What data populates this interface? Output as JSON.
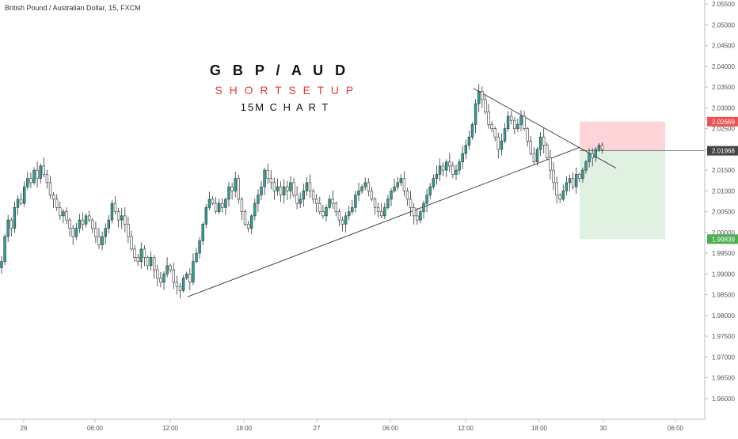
{
  "symbol_label": "British Pound / Australian Dollar, 15, FXCM",
  "annotations": {
    "title": "G B P / A U D",
    "subtitle": "S H O R T  S E T U P",
    "timeframe": "15M C H A R T"
  },
  "colors": {
    "up": "#26a69a",
    "down": "#ffffff",
    "wick": "#333333",
    "stop_zone": "#ffcdd2",
    "target_zone": "#dcefdc",
    "stop_label": "#ef5350",
    "target_label": "#4caf50",
    "price_label": "#444444",
    "trendline": "#333333"
  },
  "chart_data": {
    "type": "candlestick",
    "y_axis": {
      "min": 1.955,
      "max": 2.056,
      "ticks": [
        "2.05500",
        "2.05000",
        "2.04500",
        "2.04000",
        "2.03500",
        "2.03000",
        "2.02500",
        "2.02000",
        "2.01500",
        "2.01000",
        "2.00500",
        "2.00000",
        "1.99500",
        "1.99000",
        "1.98500",
        "1.98000",
        "1.97500",
        "1.97000",
        "1.96500",
        "1.96000"
      ]
    },
    "x_axis": {
      "ticks": [
        "26",
        "06:00",
        "12:00",
        "18:00",
        "27",
        "06:00",
        "12:00",
        "18:00",
        "30",
        "06:00"
      ]
    },
    "price_labels": {
      "stop": "2.02669",
      "current": "2.01968",
      "target": "1.99839"
    },
    "position": {
      "entry": 2.01968,
      "stop": 2.02669,
      "target": 1.99839
    },
    "trendlines": [
      {
        "name": "ascending-support",
        "from": [
          0,
          1.9845
        ],
        "to": [
          181,
          2.0205
        ]
      },
      {
        "name": "descending-resistance",
        "from": [
          150,
          2.0347
        ],
        "to": [
          194,
          2.0155
        ]
      }
    ],
    "closes": [
      1.993,
      1.999,
      2.003,
      2.001,
      2.006,
      2.008,
      2.007,
      2.011,
      2.013,
      2.012,
      2.015,
      2.013,
      2.016,
      2.014,
      2.012,
      2.009,
      2.008,
      2.006,
      2.004,
      2.005,
      2.003,
      2.001,
      1.999,
      2.001,
      2.003,
      2.002,
      2.004,
      2.003,
      2.001,
      1.999,
      1.997,
      1.999,
      2.001,
      2.003,
      2.007,
      2.005,
      2.003,
      2.004,
      2.002,
      1.999,
      1.996,
      1.994,
      1.993,
      1.996,
      1.994,
      1.992,
      1.994,
      1.991,
      1.989,
      1.988,
      1.99,
      1.992,
      1.991,
      1.988,
      1.987,
      1.986,
      1.989,
      1.99,
      1.988,
      1.993,
      1.995,
      1.998,
      2.002,
      2.006,
      2.008,
      2.007,
      2.005,
      2.007,
      2.006,
      2.008,
      2.011,
      2.01,
      2.013,
      2.008,
      2.005,
      2.002,
      2.001,
      2.004,
      2.007,
      2.009,
      2.011,
      2.015,
      2.013,
      2.012,
      2.01,
      2.011,
      2.009,
      2.011,
      2.01,
      2.012,
      2.009,
      2.007,
      2.008,
      2.01,
      2.012,
      2.01,
      2.008,
      2.007,
      2.005,
      2.004,
      2.006,
      2.008,
      2.007,
      2.005,
      2.003,
      2.002,
      2.004,
      2.005,
      2.006,
      2.009,
      2.01,
      2.011,
      2.012,
      2.01,
      2.008,
      2.006,
      2.005,
      2.004,
      2.006,
      2.008,
      2.01,
      2.011,
      2.012,
      2.013,
      2.01,
      2.008,
      2.006,
      2.004,
      2.003,
      2.005,
      2.007,
      2.009,
      2.011,
      2.013,
      2.014,
      2.016,
      2.015,
      2.017,
      2.016,
      2.014,
      2.015,
      2.017,
      2.019,
      2.021,
      2.023,
      2.026,
      2.031,
      2.034,
      2.032,
      2.029,
      2.026,
      2.025,
      2.023,
      2.02,
      2.022,
      2.025,
      2.028,
      2.027,
      2.025,
      2.026,
      2.028,
      2.025,
      2.022,
      2.019,
      2.017,
      2.02,
      2.023,
      2.021,
      2.018,
      2.015,
      2.012,
      2.009,
      2.008,
      2.01,
      2.012,
      2.013,
      2.011,
      2.014,
      2.013,
      2.015,
      2.017,
      2.019,
      2.018,
      2.02,
      2.021,
      2.02
    ]
  }
}
